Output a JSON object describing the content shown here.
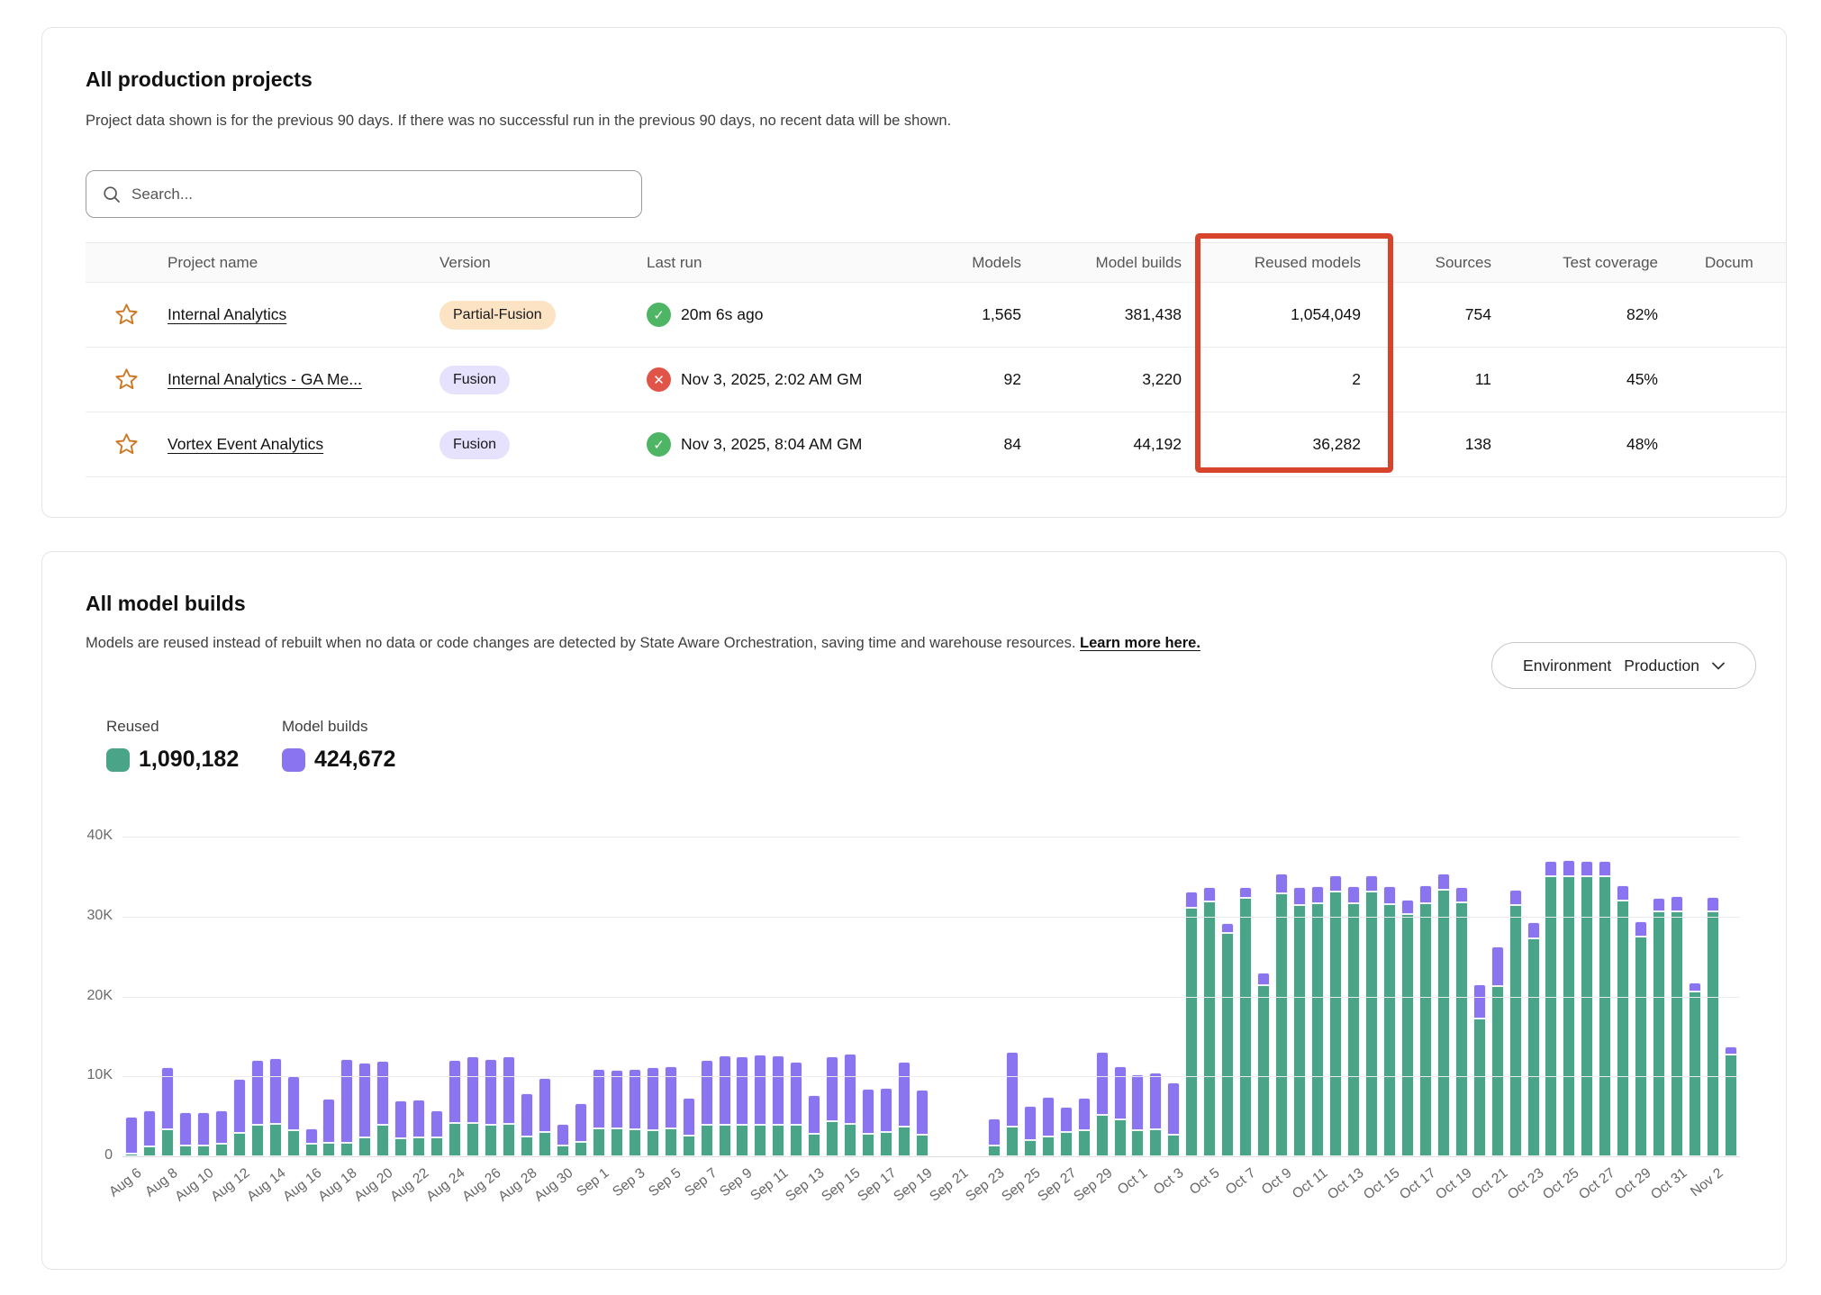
{
  "projects_card": {
    "title": "All production projects",
    "subtitle": "Project data shown is for the previous 90 days. If there was no successful run in the previous 90 days, no recent data will be shown.",
    "search_placeholder": "Search...",
    "table": {
      "columns": [
        "Project name",
        "Version",
        "Last run",
        "Models",
        "Model builds",
        "Reused models",
        "Sources",
        "Test coverage",
        "Docum"
      ],
      "rows": [
        {
          "name": "Internal Analytics",
          "version": "Partial-Fusion",
          "version_style": "peach",
          "status": "success",
          "last_run": "20m 6s ago",
          "models": "1,565",
          "model_builds": "381,438",
          "reused_models": "1,054,049",
          "sources": "754",
          "test_coverage": "82%"
        },
        {
          "name": "Internal Analytics - GA Me...",
          "version": "Fusion",
          "version_style": "lavender",
          "status": "error",
          "last_run": "Nov 3, 2025, 2:02 AM GM",
          "models": "92",
          "model_builds": "3,220",
          "reused_models": "2",
          "sources": "11",
          "test_coverage": "45%"
        },
        {
          "name": "Vortex Event Analytics",
          "version": "Fusion",
          "version_style": "lavender",
          "status": "success",
          "last_run": "Nov 3, 2025, 8:04 AM GM",
          "models": "84",
          "model_builds": "44,192",
          "reused_models": "36,282",
          "sources": "138",
          "test_coverage": "48%"
        }
      ]
    }
  },
  "builds_card": {
    "title": "All model builds",
    "description": "Models are reused instead of rebuilt when no data or code changes are detected by State Aware Orchestration, saving time and warehouse resources.",
    "learn_more": "Learn more here.",
    "environment_label": "Environment",
    "environment_value": "Production",
    "legend": {
      "reused_label": "Reused",
      "reused_value": "1,090,182",
      "builds_label": "Model builds",
      "builds_value": "424,672"
    }
  },
  "colors": {
    "reused_green": "#4aa588",
    "builds_purple": "#8b74f0",
    "highlight_red": "#d8432c",
    "badge_peach": "#fbe3c3",
    "badge_lavender": "#e6e1fc",
    "status_success": "#4db564",
    "status_error": "#e15549",
    "star_orange": "#cc7a28"
  },
  "chart_data": {
    "type": "bar",
    "stacked": true,
    "title": "All model builds",
    "xlabel": "",
    "ylabel": "",
    "ylim": [
      0,
      40000
    ],
    "grid": true,
    "legend_position": "top-left",
    "yticks": [
      [
        0,
        "0"
      ],
      [
        10000,
        "10K"
      ],
      [
        20000,
        "20K"
      ],
      [
        30000,
        "30K"
      ],
      [
        40000,
        "40K"
      ]
    ],
    "tick_every": 2,
    "series_names": [
      "Reused",
      "Model builds"
    ],
    "points": [
      [
        "Aug 6",
        300,
        4700
      ],
      [
        "Aug 7",
        1200,
        4500
      ],
      [
        "Aug 8",
        3400,
        7800
      ],
      [
        "Aug 9",
        1400,
        4100
      ],
      [
        "Aug 10",
        1300,
        4200
      ],
      [
        "Aug 11",
        1600,
        4200
      ],
      [
        "Aug 12",
        2900,
        6800
      ],
      [
        "Aug 13",
        4000,
        8100
      ],
      [
        "Aug 14",
        4100,
        8200
      ],
      [
        "Aug 15",
        3300,
        6700
      ],
      [
        "Aug 16",
        1600,
        1900
      ],
      [
        "Aug 17",
        1700,
        5500
      ],
      [
        "Aug 18",
        1700,
        10500
      ],
      [
        "Aug 19",
        2400,
        9300
      ],
      [
        "Aug 20",
        3900,
        8000
      ],
      [
        "Aug 21",
        2200,
        4800
      ],
      [
        "Aug 22",
        2400,
        4700
      ],
      [
        "Aug 23",
        2400,
        3300
      ],
      [
        "Aug 24",
        4200,
        7900
      ],
      [
        "Aug 25",
        4200,
        8300
      ],
      [
        "Aug 26",
        4000,
        8200
      ],
      [
        "Aug 27",
        4100,
        8400
      ],
      [
        "Aug 28",
        2500,
        5400
      ],
      [
        "Aug 29",
        3100,
        6700
      ],
      [
        "Aug 30",
        1400,
        2700
      ],
      [
        "Aug 31",
        1800,
        4800
      ],
      [
        "Sep 1",
        3500,
        7400
      ],
      [
        "Sep 2",
        3500,
        7300
      ],
      [
        "Sep 3",
        3400,
        7500
      ],
      [
        "Sep 4",
        3300,
        7900
      ],
      [
        "Sep 5",
        3500,
        7800
      ],
      [
        "Sep 6",
        2600,
        4700
      ],
      [
        "Sep 7",
        4000,
        8100
      ],
      [
        "Sep 8",
        3900,
        8700
      ],
      [
        "Sep 9",
        3900,
        8600
      ],
      [
        "Sep 10",
        4000,
        8700
      ],
      [
        "Sep 11",
        3900,
        8700
      ],
      [
        "Sep 12",
        3900,
        7900
      ],
      [
        "Sep 13",
        2800,
        4900
      ],
      [
        "Sep 14",
        4400,
        8100
      ],
      [
        "Sep 15",
        4100,
        8700
      ],
      [
        "Sep 16",
        2800,
        5600
      ],
      [
        "Sep 17",
        3100,
        5500
      ],
      [
        "Sep 18",
        3700,
        8100
      ],
      [
        "Sep 19",
        2700,
        5600
      ],
      [
        "Sep 20",
        null,
        null
      ],
      [
        "Sep 21",
        null,
        null
      ],
      [
        "Sep 22",
        null,
        null
      ],
      [
        "Sep 23",
        1300,
        3400
      ],
      [
        "Sep 24",
        3700,
        9400
      ],
      [
        "Sep 25",
        2000,
        4300
      ],
      [
        "Sep 26",
        2500,
        4900
      ],
      [
        "Sep 27",
        3000,
        3200
      ],
      [
        "Sep 28",
        3300,
        4000
      ],
      [
        "Sep 29",
        5200,
        7900
      ],
      [
        "Sep 30",
        4600,
        6700
      ],
      [
        "Oct 1",
        3300,
        7000
      ],
      [
        "Oct 2",
        3400,
        7100
      ],
      [
        "Oct 3",
        2700,
        6500
      ],
      [
        "Oct 4",
        31100,
        2000
      ],
      [
        "Oct 5",
        31900,
        1800
      ],
      [
        "Oct 6",
        27900,
        1300
      ],
      [
        "Oct 7",
        32300,
        1400
      ],
      [
        "Oct 8",
        21400,
        1600
      ],
      [
        "Oct 9",
        32900,
        2500
      ],
      [
        "Oct 10",
        31400,
        2300
      ],
      [
        "Oct 11",
        31700,
        2100
      ],
      [
        "Oct 12",
        33100,
        2100
      ],
      [
        "Oct 13",
        31700,
        2100
      ],
      [
        "Oct 14",
        33100,
        2100
      ],
      [
        "Oct 15",
        31600,
        2200
      ],
      [
        "Oct 16",
        30300,
        1800
      ],
      [
        "Oct 17",
        31700,
        2200
      ],
      [
        "Oct 18",
        33300,
        2100
      ],
      [
        "Oct 19",
        31800,
        1900
      ],
      [
        "Oct 20",
        17200,
        4300
      ],
      [
        "Oct 21",
        21300,
        4900
      ],
      [
        "Oct 22",
        31400,
        2000
      ],
      [
        "Oct 23",
        27300,
        2000
      ],
      [
        "Oct 24",
        35100,
        1900
      ],
      [
        "Oct 25",
        35000,
        2100
      ],
      [
        "Oct 26",
        35000,
        2000
      ],
      [
        "Oct 27",
        35000,
        2000
      ],
      [
        "Oct 28",
        32000,
        1900
      ],
      [
        "Oct 29",
        27500,
        1900
      ],
      [
        "Oct 30",
        30600,
        1700
      ],
      [
        "Oct 31",
        30600,
        2000
      ],
      [
        "Nov 1",
        20600,
        1200
      ],
      [
        "Nov 2",
        30600,
        1900
      ],
      [
        "Nov 3",
        12700,
        1100
      ]
    ]
  }
}
